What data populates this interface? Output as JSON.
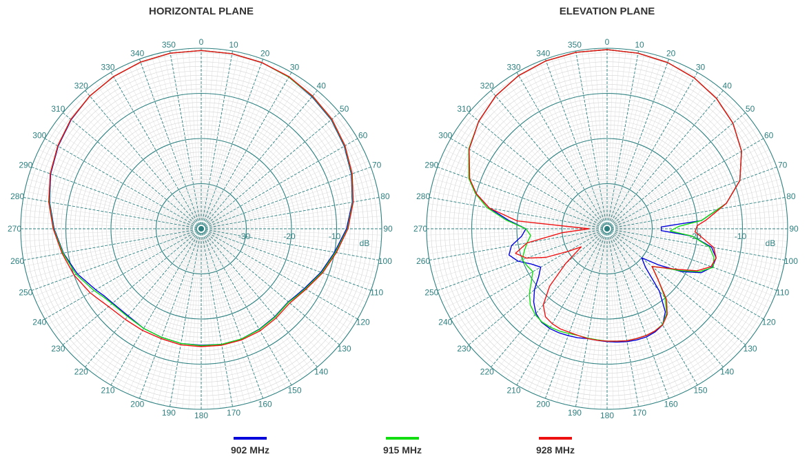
{
  "chart_data": [
    {
      "type": "polar-line",
      "title": "HORIZONTAL PLANE",
      "r_unit": "dB",
      "r_range": [
        -40,
        0
      ],
      "r_tick_labels": [
        "-30",
        "-20",
        "-10"
      ],
      "angle_tick_labels": [
        "0",
        "10",
        "20",
        "30",
        "40",
        "50",
        "60",
        "70",
        "80",
        "90",
        "100",
        "110",
        "120",
        "130",
        "140",
        "150",
        "160",
        "170",
        "180",
        "190",
        "200",
        "210",
        "220",
        "230",
        "240",
        "250",
        "260",
        "270",
        "280",
        "290",
        "300",
        "310",
        "320",
        "330",
        "340",
        "350"
      ],
      "grid": true,
      "series": [
        {
          "name": "902 MHz",
          "color": "#0000dd",
          "angles": [
            0,
            10,
            20,
            30,
            40,
            50,
            60,
            70,
            80,
            90,
            100,
            110,
            120,
            125,
            130,
            140,
            150,
            160,
            170,
            180,
            190,
            200,
            210,
            220,
            230,
            235,
            240,
            250,
            260,
            270,
            280,
            290,
            300,
            310,
            320,
            330,
            340,
            350
          ],
          "values": [
            -0.5,
            -0.6,
            -0.8,
            -1.2,
            -1.8,
            -2.4,
            -3.4,
            -4.6,
            -6.0,
            -7.8,
            -10.0,
            -11.8,
            -13.6,
            -14.3,
            -14.8,
            -14.6,
            -14.3,
            -14.0,
            -14.0,
            -14.2,
            -14.2,
            -14.4,
            -14.5,
            -14.8,
            -14.4,
            -13.9,
            -13.0,
            -10.8,
            -9.0,
            -7.4,
            -5.9,
            -4.5,
            -3.4,
            -2.4,
            -1.6,
            -1.1,
            -0.7,
            -0.5
          ]
        },
        {
          "name": "915 MHz",
          "color": "#11dd11",
          "angles": [
            0,
            10,
            20,
            30,
            40,
            50,
            60,
            70,
            80,
            90,
            100,
            110,
            120,
            125,
            130,
            140,
            150,
            160,
            170,
            180,
            190,
            200,
            210,
            220,
            230,
            235,
            240,
            250,
            260,
            270,
            280,
            290,
            300,
            310,
            320,
            330,
            340,
            350
          ],
          "values": [
            -0.5,
            -0.6,
            -0.8,
            -1.2,
            -1.7,
            -2.3,
            -3.3,
            -4.5,
            -5.9,
            -7.6,
            -9.8,
            -11.6,
            -13.4,
            -14.1,
            -14.7,
            -14.5,
            -14.2,
            -14.0,
            -14.0,
            -14.1,
            -14.2,
            -14.4,
            -14.5,
            -14.6,
            -14.2,
            -13.6,
            -12.6,
            -10.5,
            -8.9,
            -7.3,
            -5.8,
            -4.4,
            -3.3,
            -2.3,
            -1.6,
            -1.1,
            -0.7,
            -0.5
          ]
        },
        {
          "name": "928 MHz",
          "color": "#ee1111",
          "angles": [
            0,
            10,
            20,
            30,
            40,
            50,
            60,
            70,
            80,
            90,
            100,
            110,
            120,
            125,
            130,
            140,
            150,
            160,
            170,
            180,
            190,
            200,
            210,
            220,
            230,
            235,
            240,
            250,
            260,
            270,
            280,
            290,
            300,
            310,
            320,
            330,
            340,
            350
          ],
          "values": [
            -0.5,
            -0.6,
            -0.8,
            -1.1,
            -1.6,
            -2.2,
            -3.2,
            -4.4,
            -5.8,
            -7.5,
            -9.6,
            -11.4,
            -13.2,
            -13.9,
            -14.4,
            -14.2,
            -13.9,
            -13.8,
            -13.8,
            -13.9,
            -13.9,
            -14.1,
            -14.0,
            -13.8,
            -13.2,
            -12.5,
            -11.6,
            -10.0,
            -8.7,
            -7.2,
            -5.7,
            -4.4,
            -3.3,
            -2.3,
            -1.6,
            -1.1,
            -0.7,
            -0.5
          ]
        }
      ]
    },
    {
      "type": "polar-line",
      "title": "ELEVATION PLANE",
      "r_unit": "dB",
      "r_range": [
        -40,
        0
      ],
      "r_tick_labels": [
        "-20",
        "-10"
      ],
      "angle_tick_labels": [
        "0",
        "10",
        "20",
        "30",
        "40",
        "50",
        "60",
        "70",
        "80",
        "90",
        "100",
        "110",
        "120",
        "130",
        "140",
        "150",
        "160",
        "170",
        "180",
        "190",
        "200",
        "210",
        "220",
        "230",
        "240",
        "250",
        "260",
        "270",
        "280",
        "290",
        "300",
        "310",
        "320",
        "330",
        "340",
        "350"
      ],
      "grid": true,
      "series": [
        {
          "name": "902 MHz",
          "color": "#0000dd",
          "angles": [
            0,
            10,
            20,
            30,
            40,
            50,
            60,
            70,
            78,
            85,
            88,
            92,
            95,
            100,
            105,
            110,
            115,
            120,
            125,
            130,
            135,
            140,
            145,
            150,
            155,
            160,
            165,
            170,
            175,
            180,
            185,
            190,
            195,
            200,
            205,
            210,
            215,
            220,
            225,
            230,
            235,
            240,
            245,
            250,
            255,
            260,
            265,
            270,
            275,
            280,
            285,
            290,
            300,
            310,
            320,
            330,
            340,
            350
          ],
          "values": [
            -0.3,
            -0.5,
            -0.8,
            -1.4,
            -2.3,
            -3.6,
            -5.6,
            -8.7,
            -13.0,
            -19.0,
            -28.0,
            -28.0,
            -21.0,
            -16.5,
            -15.0,
            -15.2,
            -17.0,
            -21.0,
            -26.0,
            -30.0,
            -28.0,
            -22.0,
            -17.5,
            -15.4,
            -14.8,
            -14.5,
            -14.5,
            -14.6,
            -14.8,
            -15.0,
            -15.2,
            -15.3,
            -15.0,
            -14.8,
            -14.6,
            -14.5,
            -14.7,
            -15.5,
            -17.0,
            -19.0,
            -21.5,
            -23.0,
            -21.5,
            -19.0,
            -17.5,
            -18.5,
            -21.0,
            -22.0,
            -18.0,
            -13.5,
            -10.0,
            -7.5,
            -4.7,
            -2.9,
            -1.6,
            -0.8,
            -0.4,
            -0.3
          ]
        },
        {
          "name": "915 MHz",
          "color": "#11dd11",
          "angles": [
            0,
            10,
            20,
            30,
            40,
            50,
            60,
            70,
            78,
            85,
            88,
            92,
            95,
            100,
            105,
            110,
            115,
            120,
            125,
            130,
            135,
            140,
            145,
            150,
            155,
            160,
            165,
            170,
            175,
            180,
            185,
            190,
            195,
            200,
            205,
            210,
            215,
            220,
            225,
            230,
            235,
            240,
            245,
            250,
            255,
            260,
            265,
            270,
            275,
            280,
            285,
            290,
            300,
            310,
            320,
            330,
            340,
            350
          ],
          "values": [
            -0.3,
            -0.5,
            -0.8,
            -1.4,
            -2.3,
            -3.6,
            -5.6,
            -8.7,
            -13.0,
            -19.0,
            -24.0,
            -26.0,
            -21.0,
            -17.0,
            -15.5,
            -15.0,
            -17.5,
            -21.5,
            -25.0,
            -27.0,
            -24.0,
            -20.0,
            -17.0,
            -15.5,
            -15.0,
            -14.8,
            -14.8,
            -14.8,
            -15.0,
            -15.1,
            -15.3,
            -15.4,
            -15.5,
            -15.3,
            -15.0,
            -14.8,
            -14.8,
            -15.2,
            -16.0,
            -17.5,
            -19.5,
            -21.0,
            -20.5,
            -20.0,
            -21.0,
            -22.0,
            -23.0,
            -22.0,
            -17.5,
            -13.0,
            -9.8,
            -7.4,
            -4.6,
            -2.9,
            -1.6,
            -0.8,
            -0.4,
            -0.3
          ]
        },
        {
          "name": "928 MHz",
          "color": "#ee1111",
          "angles": [
            0,
            10,
            20,
            30,
            40,
            50,
            60,
            70,
            78,
            85,
            88,
            92,
            95,
            100,
            105,
            110,
            115,
            120,
            125,
            130,
            135,
            140,
            145,
            150,
            155,
            160,
            165,
            170,
            175,
            180,
            185,
            190,
            195,
            200,
            205,
            210,
            215,
            220,
            225,
            230,
            235,
            240,
            245,
            250,
            255,
            260,
            265,
            270,
            275,
            280,
            285,
            290,
            300,
            310,
            320,
            330,
            340,
            350
          ],
          "values": [
            -0.3,
            -0.5,
            -0.8,
            -1.4,
            -2.3,
            -3.6,
            -5.6,
            -8.7,
            -13.0,
            -18.0,
            -20.0,
            -20.5,
            -19.0,
            -16.0,
            -15.0,
            -15.5,
            -18.0,
            -22.0,
            -25.0,
            -27.0,
            -24.0,
            -19.5,
            -16.8,
            -15.4,
            -15.0,
            -14.8,
            -14.8,
            -14.8,
            -15.0,
            -15.1,
            -15.2,
            -15.3,
            -15.5,
            -15.6,
            -15.5,
            -15.7,
            -16.2,
            -18.0,
            -22.0,
            -28.0,
            -33.0,
            -30.0,
            -25.0,
            -21.0,
            -19.0,
            -22.0,
            -30.0,
            -36.0,
            -20.0,
            -13.5,
            -10.0,
            -7.6,
            -4.7,
            -2.9,
            -1.6,
            -0.8,
            -0.4,
            -0.3
          ]
        }
      ]
    }
  ],
  "legend": [
    {
      "label": "902 MHz",
      "color": "#0000dd"
    },
    {
      "label": "915 MHz",
      "color": "#11dd11"
    },
    {
      "label": "928 MHz",
      "color": "#ee1111"
    }
  ]
}
